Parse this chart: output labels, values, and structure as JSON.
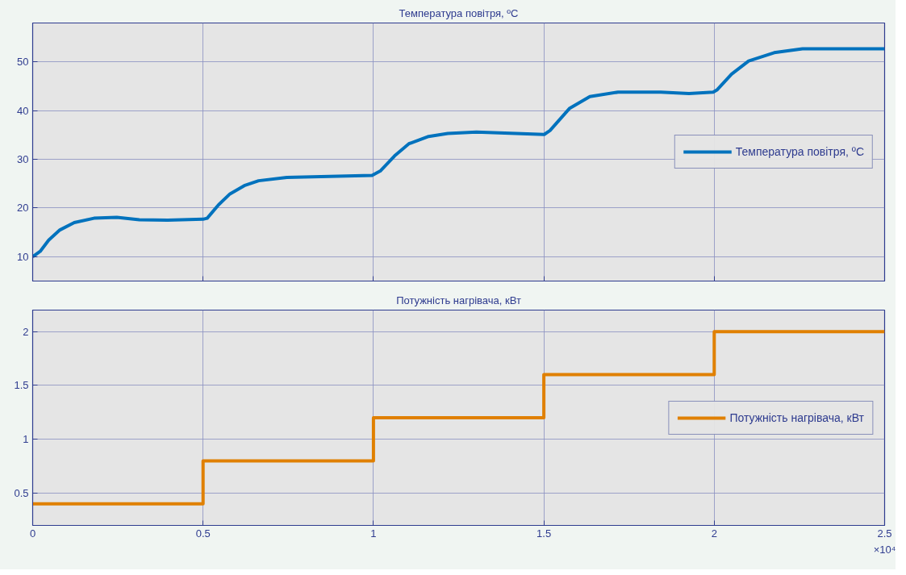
{
  "chart_data": [
    {
      "type": "line",
      "title": "Температура повітря, ºC",
      "series": [
        {
          "name": "Температура повітря, ºC",
          "color": "#0072bd",
          "x": [
            0,
            0.022,
            0.047,
            0.08,
            0.122,
            0.18,
            0.247,
            0.313,
            0.396,
            0.5,
            0.512,
            0.546,
            0.579,
            0.621,
            0.663,
            0.746,
            0.871,
            0.996,
            1.02,
            1.062,
            1.104,
            1.162,
            1.218,
            1.302,
            1.385,
            1.501,
            1.518,
            1.576,
            1.635,
            1.718,
            1.843,
            1.926,
            1.997,
            2.009,
            2.051,
            2.101,
            2.176,
            2.259,
            2.384,
            2.5
          ],
          "values": [
            10,
            11.1,
            13.4,
            15.5,
            17.0,
            17.9,
            18.1,
            17.6,
            17.5,
            17.7,
            17.9,
            20.7,
            22.9,
            24.6,
            25.6,
            26.3,
            26.5,
            26.7,
            27.6,
            30.7,
            33.2,
            34.7,
            35.3,
            35.6,
            35.4,
            35.1,
            35.9,
            40.5,
            42.9,
            43.8,
            43.8,
            43.5,
            43.8,
            44.3,
            47.5,
            50.2,
            51.9,
            52.7,
            52.7,
            52.7
          ]
        }
      ],
      "xlim": [
        0,
        2.5
      ],
      "xticks": [
        0,
        0.5,
        1,
        1.5,
        2,
        2.5
      ],
      "ylim": [
        5,
        58
      ],
      "yticks": [
        10,
        20,
        30,
        40,
        50
      ],
      "tick_labels": "y",
      "grid": true,
      "legend": "right"
    },
    {
      "type": "step",
      "title": "Потужність нагрівача, кВт",
      "series": [
        {
          "name": "Потужність нагрівача, кВт",
          "color": "#e08000",
          "x": [
            0,
            0.5,
            1,
            1.5,
            2,
            2.5
          ],
          "values": [
            0.4,
            0.8,
            1.2,
            1.6,
            2,
            2
          ]
        }
      ],
      "xlim": [
        0,
        2.5
      ],
      "xticks": [
        0,
        0.5,
        1,
        1.5,
        2,
        2.5
      ],
      "ylim": [
        0.2,
        2.2
      ],
      "yticks": [
        0.5,
        1,
        1.5,
        2
      ],
      "annotations": [
        "×10⁴"
      ],
      "grid": true,
      "legend": "right"
    }
  ]
}
